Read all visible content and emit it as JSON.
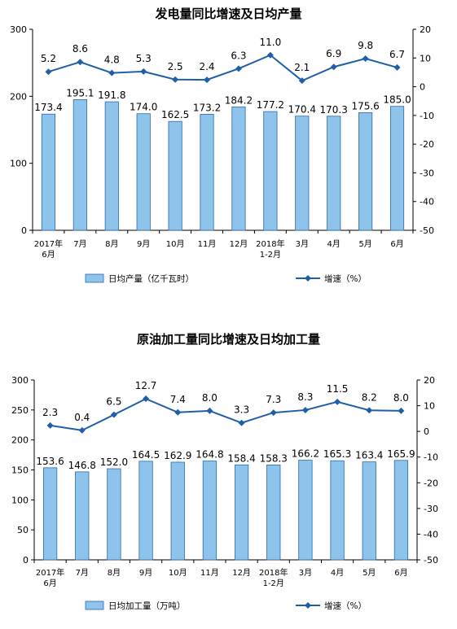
{
  "chart_data": [
    {
      "type": "bar",
      "title": "发电量同比增速及日均产量",
      "categories": [
        "2017年\n6月",
        "7月",
        "8月",
        "9月",
        "10月",
        "11月",
        "12月",
        "2018年\n1-2月",
        "3月",
        "4月",
        "5月",
        "6月"
      ],
      "ylim": [
        0,
        300
      ],
      "yticks": [
        0,
        100,
        200,
        300
      ],
      "y2lim": [
        -50,
        20
      ],
      "y2ticks": [
        -50,
        -40,
        -30,
        -20,
        -10,
        0,
        10,
        20
      ],
      "grid": false,
      "legend_position": "bottom",
      "series": [
        {
          "name": "日均产量（亿千瓦时）",
          "type": "bar",
          "axis": "left",
          "color": "#8ec3ec",
          "values": [
            173.4,
            195.1,
            191.8,
            174.0,
            162.5,
            173.2,
            184.2,
            177.2,
            170.4,
            170.3,
            175.6,
            185.0
          ],
          "labels": [
            "173.4",
            "195.1",
            "191.8",
            "174.0",
            "162.5",
            "173.2",
            "184.2",
            "177.2",
            "170.4",
            "170.3",
            "175.6",
            "185.0"
          ]
        },
        {
          "name": "增速（%）",
          "type": "line",
          "axis": "right",
          "color": "#1f5fa8",
          "values": [
            5.2,
            8.6,
            4.8,
            5.3,
            2.5,
            2.4,
            6.3,
            11.0,
            2.1,
            6.9,
            9.8,
            6.7
          ],
          "labels": [
            "5.2",
            "8.6",
            "4.8",
            "5.3",
            "2.5",
            "2.4",
            "6.3",
            "11.0",
            "2.1",
            "6.9",
            "9.8",
            "6.7"
          ]
        }
      ]
    },
    {
      "type": "bar",
      "title": "原油加工量同比增速及日均加工量",
      "categories": [
        "2017年\n6月",
        "7月",
        "8月",
        "9月",
        "10月",
        "11月",
        "12月",
        "2018年\n1-2月",
        "3月",
        "4月",
        "5月",
        "6月"
      ],
      "ylim": [
        0,
        300
      ],
      "yticks": [
        0,
        50,
        100,
        150,
        200,
        250,
        300
      ],
      "y2lim": [
        -50,
        20
      ],
      "y2ticks": [
        -50,
        -40,
        -30,
        -20,
        -10,
        0,
        10,
        20
      ],
      "grid": false,
      "legend_position": "bottom",
      "series": [
        {
          "name": "日均加工量（万吨）",
          "type": "bar",
          "axis": "left",
          "color": "#8ec3ec",
          "values": [
            153.6,
            146.8,
            152.0,
            164.5,
            162.9,
            164.8,
            158.4,
            158.3,
            166.2,
            165.3,
            163.4,
            165.9
          ],
          "labels": [
            "153.6",
            "146.8",
            "152.0",
            "164.5",
            "162.9",
            "164.8",
            "158.4",
            "158.3",
            "166.2",
            "165.3",
            "163.4",
            "165.9"
          ]
        },
        {
          "name": "增速（%）",
          "type": "line",
          "axis": "right",
          "color": "#1f5fa8",
          "values": [
            2.3,
            0.4,
            6.5,
            12.7,
            7.4,
            8.0,
            3.3,
            7.3,
            8.3,
            11.5,
            8.2,
            8.0
          ],
          "labels": [
            "2.3",
            "0.4",
            "6.5",
            "12.7",
            "7.4",
            "8.0",
            "3.3",
            "7.3",
            "8.3",
            "11.5",
            "8.2",
            "8.0"
          ]
        }
      ]
    }
  ]
}
